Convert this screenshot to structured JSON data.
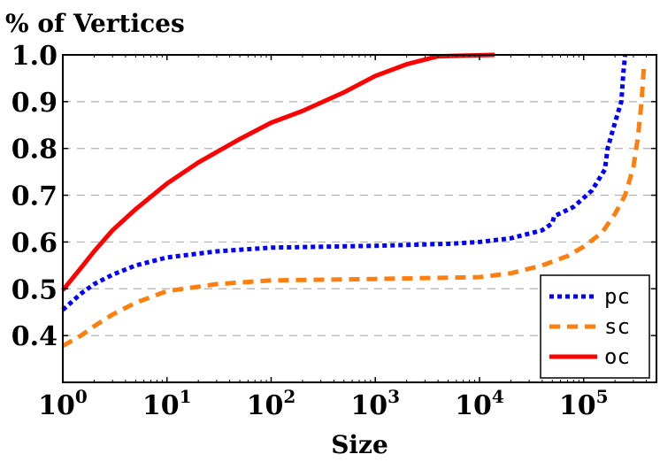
{
  "chart_data": {
    "type": "line",
    "title": "% of Vertices",
    "xlabel": "Size",
    "ylabel": "",
    "xscale": "log",
    "xlim": [
      1,
      500000
    ],
    "ylim": [
      0.3,
      1.0
    ],
    "x_ticks": [
      {
        "value": 1,
        "base": "10",
        "exp": "0"
      },
      {
        "value": 10,
        "base": "10",
        "exp": "1"
      },
      {
        "value": 100,
        "base": "10",
        "exp": "2"
      },
      {
        "value": 1000,
        "base": "10",
        "exp": "3"
      },
      {
        "value": 10000,
        "base": "10",
        "exp": "4"
      },
      {
        "value": 100000,
        "base": "10",
        "exp": "5"
      }
    ],
    "y_ticks": [
      {
        "value": 0.4,
        "label": "0.4"
      },
      {
        "value": 0.5,
        "label": "0.5"
      },
      {
        "value": 0.6,
        "label": "0.6"
      },
      {
        "value": 0.7,
        "label": "0.7"
      },
      {
        "value": 0.8,
        "label": "0.8"
      },
      {
        "value": 0.9,
        "label": "0.9"
      },
      {
        "value": 1.0,
        "label": "1.0"
      }
    ],
    "grid": "horizontal-dashed",
    "legend_position": "bottom-right",
    "series": [
      {
        "name": "pc",
        "color": "#0000ff",
        "style": "dotted",
        "points": [
          [
            1,
            0.455
          ],
          [
            1.5,
            0.49
          ],
          [
            2,
            0.51
          ],
          [
            3,
            0.53
          ],
          [
            5,
            0.55
          ],
          [
            10,
            0.567
          ],
          [
            30,
            0.58
          ],
          [
            100,
            0.588
          ],
          [
            1000,
            0.592
          ],
          [
            5000,
            0.596
          ],
          [
            10000,
            0.6
          ],
          [
            20000,
            0.608
          ],
          [
            40000,
            0.625
          ],
          [
            50000,
            0.64
          ],
          [
            52000,
            0.655
          ],
          [
            80000,
            0.675
          ],
          [
            120000,
            0.71
          ],
          [
            160000,
            0.755
          ],
          [
            170000,
            0.8
          ],
          [
            200000,
            0.855
          ],
          [
            230000,
            0.9
          ],
          [
            240000,
            0.96
          ],
          [
            250000,
            1.0
          ]
        ]
      },
      {
        "name": "sc",
        "color": "#ff7f0e",
        "style": "dashed",
        "points": [
          [
            1,
            0.378
          ],
          [
            1.5,
            0.4
          ],
          [
            2,
            0.42
          ],
          [
            3,
            0.445
          ],
          [
            5,
            0.47
          ],
          [
            10,
            0.495
          ],
          [
            30,
            0.51
          ],
          [
            100,
            0.518
          ],
          [
            1000,
            0.521
          ],
          [
            10000,
            0.525
          ],
          [
            20000,
            0.533
          ],
          [
            40000,
            0.55
          ],
          [
            70000,
            0.57
          ],
          [
            100000,
            0.59
          ],
          [
            150000,
            0.62
          ],
          [
            200000,
            0.66
          ],
          [
            250000,
            0.7
          ],
          [
            300000,
            0.76
          ],
          [
            330000,
            0.82
          ],
          [
            360000,
            0.9
          ],
          [
            380000,
            0.98
          ]
        ]
      },
      {
        "name": "oc",
        "color": "#ff0000",
        "style": "solid",
        "points": [
          [
            1,
            0.497
          ],
          [
            1.5,
            0.545
          ],
          [
            2,
            0.58
          ],
          [
            3,
            0.625
          ],
          [
            5,
            0.67
          ],
          [
            10,
            0.725
          ],
          [
            20,
            0.77
          ],
          [
            50,
            0.82
          ],
          [
            100,
            0.855
          ],
          [
            200,
            0.88
          ],
          [
            500,
            0.92
          ],
          [
            1000,
            0.955
          ],
          [
            2000,
            0.98
          ],
          [
            4000,
            0.997
          ],
          [
            14000,
            1.0
          ]
        ]
      }
    ]
  }
}
